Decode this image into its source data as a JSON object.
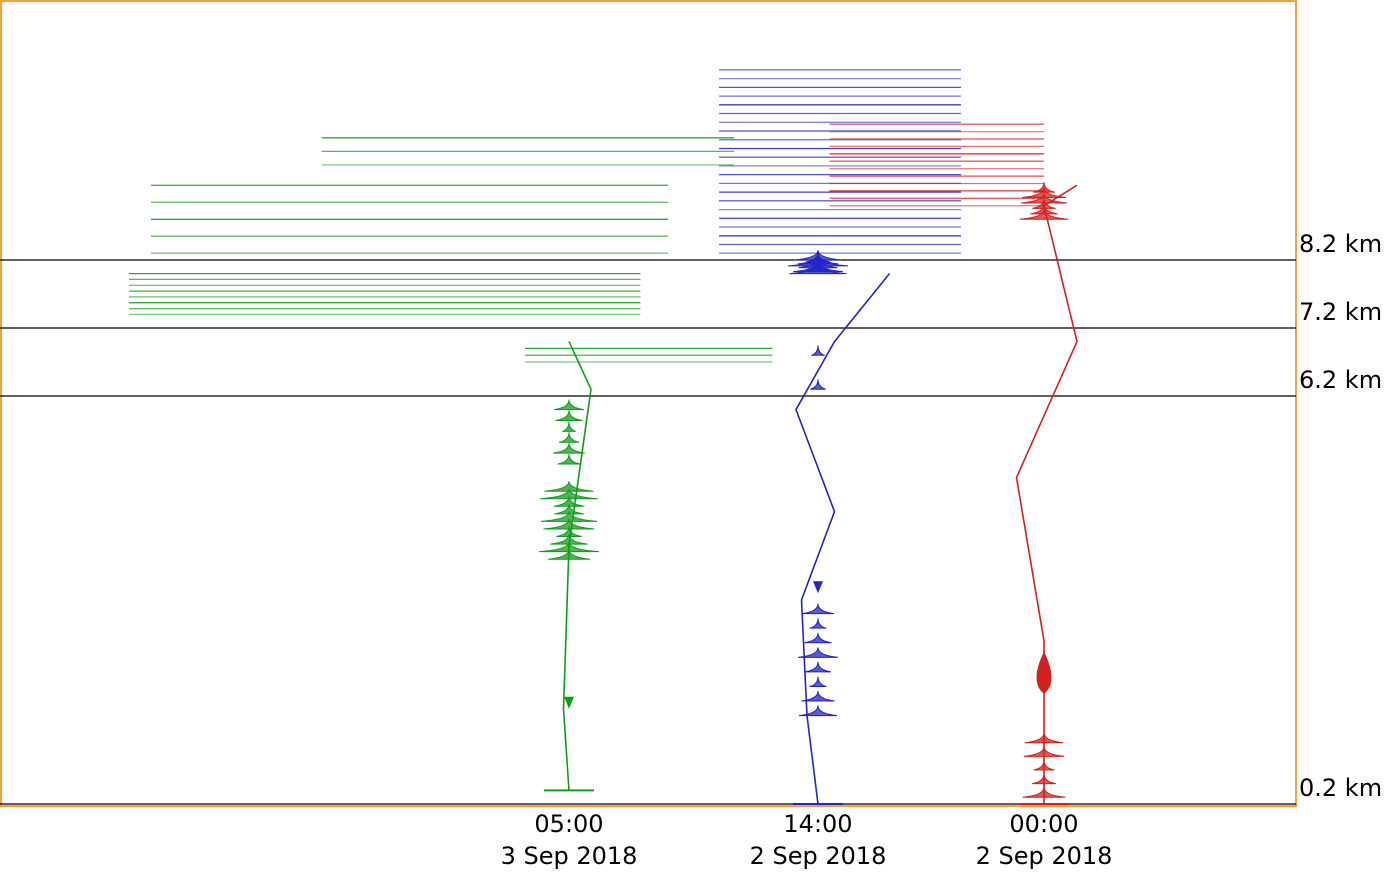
{
  "chart_data": {
    "type": "line",
    "title": "",
    "xlabel": "",
    "ylabel": "",
    "y_unit": "km",
    "grid": false,
    "legend": "none",
    "altitude_lines": [
      {
        "value": 8.2,
        "label": "8.2 km"
      },
      {
        "value": 7.2,
        "label": "7.2 km"
      },
      {
        "value": 6.2,
        "label": "6.2 km"
      },
      {
        "value": 0.2,
        "label": "0.2 km"
      }
    ],
    "ylim": [
      0.2,
      12.0
    ],
    "series": [
      {
        "color": "#0f9d1a",
        "time_label": "05:00",
        "date_label": "3 Sep 2018",
        "surface_altitude": 0.4,
        "profile": [
          [
            0.4,
            0
          ],
          [
            1.6,
            -0.01
          ],
          [
            4.0,
            0.0
          ],
          [
            6.3,
            0.04
          ],
          [
            7.0,
            0.0
          ]
        ],
        "features": [
          {
            "type": "arrow",
            "alt": 1.6
          },
          {
            "type": "cluster",
            "alt_from": 3.8,
            "alt_to": 4.8,
            "count": 10,
            "width": 60
          },
          {
            "type": "cluster",
            "alt_from": 5.2,
            "alt_to": 6.0,
            "count": 6,
            "width": 32
          },
          {
            "type": "band",
            "alt_from": 7.4,
            "alt_to": 8.0,
            "count": 8,
            "x_from": -8.0,
            "x_to": 1.3
          },
          {
            "type": "band",
            "alt_from": 8.3,
            "alt_to": 9.3,
            "count": 5,
            "x_from": -7.6,
            "x_to": 1.8
          },
          {
            "type": "band",
            "alt_from": 9.6,
            "alt_to": 10.0,
            "count": 3,
            "x_from": -4.5,
            "x_to": 3.0
          },
          {
            "type": "band",
            "alt_from": 6.7,
            "alt_to": 6.9,
            "count": 3,
            "x_from": -0.8,
            "x_to": 3.7
          }
        ]
      },
      {
        "color": "#2323c8",
        "time_label": "14:00",
        "date_label": "2 Sep 2018",
        "surface_altitude": 0.2,
        "profile": [
          [
            0.2,
            0.0
          ],
          [
            1.5,
            -0.02
          ],
          [
            3.2,
            -0.03
          ],
          [
            4.5,
            0.03
          ],
          [
            6.0,
            -0.04
          ],
          [
            7.0,
            0.03
          ],
          [
            8.0,
            0.13
          ]
        ],
        "features": [
          {
            "type": "arrow",
            "alt": 3.3
          },
          {
            "type": "cluster",
            "alt_from": 1.5,
            "alt_to": 3.0,
            "count": 8,
            "width": 40
          },
          {
            "type": "cluster",
            "alt_from": 6.3,
            "alt_to": 6.8,
            "count": 2,
            "width": 16
          },
          {
            "type": "cluster",
            "alt_from": 8.0,
            "alt_to": 8.2,
            "count": 8,
            "width": 60
          },
          {
            "type": "band",
            "alt_from": 8.3,
            "alt_to": 11.0,
            "count": 22,
            "x_from": -1.8,
            "x_to": 2.6
          }
        ]
      },
      {
        "color": "#d42020",
        "time_label": "00:00",
        "date_label": "2 Sep 2018",
        "surface_altitude": 0.2,
        "profile": [
          [
            0.2,
            0.0
          ],
          [
            2.4,
            0.0
          ],
          [
            2.6,
            0.0
          ],
          [
            5.0,
            -0.05
          ],
          [
            7.0,
            0.06
          ],
          [
            9.0,
            0.0
          ],
          [
            9.3,
            0.06
          ]
        ],
        "features": [
          {
            "type": "blob",
            "alt": 2.0
          },
          {
            "type": "cluster",
            "alt_from": 0.3,
            "alt_to": 1.1,
            "count": 5,
            "width": 44
          },
          {
            "type": "cluster",
            "alt_from": 8.8,
            "alt_to": 9.2,
            "count": 6,
            "width": 50
          },
          {
            "type": "band",
            "alt_from": 9.0,
            "alt_to": 10.2,
            "count": 12,
            "x_from": -3.9,
            "x_to": 0.0
          }
        ]
      }
    ]
  }
}
